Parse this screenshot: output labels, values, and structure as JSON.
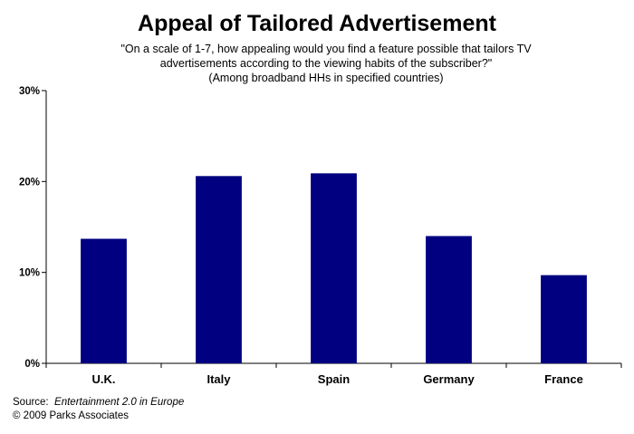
{
  "chart_data": {
    "type": "bar",
    "title": "Appeal of Tailored Advertisement",
    "subtitle_lines": [
      "\"On a scale of 1-7, how appealing would you find a feature possible that tailors TV",
      "advertisements according to the viewing habits of the subscriber?\"",
      "(Among broadband HHs in specified countries)"
    ],
    "categories": [
      "U.K.",
      "Italy",
      "Spain",
      "Germany",
      "France"
    ],
    "values": [
      13.7,
      20.6,
      20.9,
      14.0,
      9.7
    ],
    "ylim": [
      0,
      30
    ],
    "yticks": [
      0,
      10,
      20,
      30
    ],
    "ytick_labels": [
      "0%",
      "10%",
      "20%",
      "30%"
    ],
    "bar_color": "#000080",
    "grid": false,
    "xlabel": "",
    "ylabel": ""
  },
  "source": {
    "label": "Source:",
    "title": "Entertainment 2.0 in Europe",
    "copyright": "© 2009 Parks Associates"
  }
}
